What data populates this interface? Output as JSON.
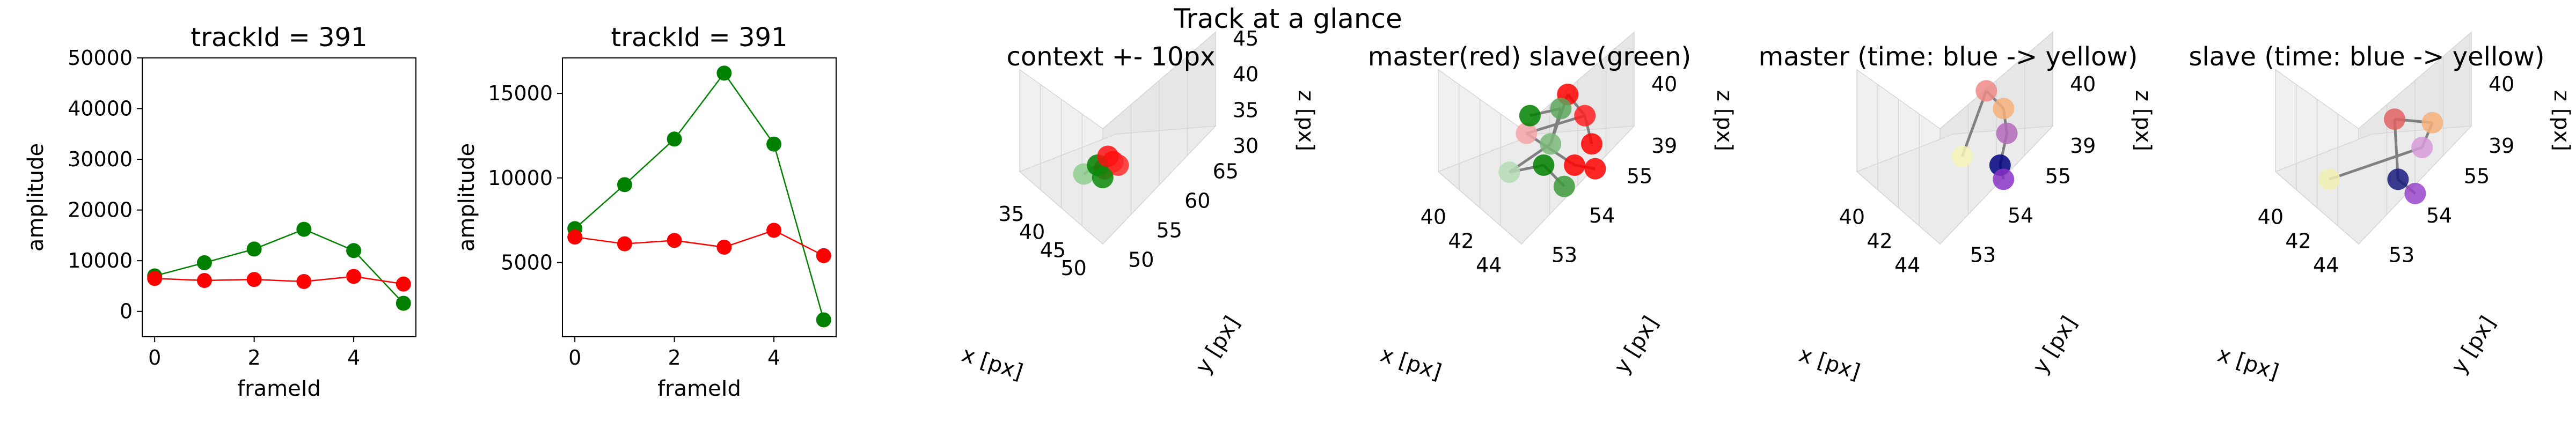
{
  "figure": {
    "suptitle": "Track at a glance"
  },
  "chart_data": [
    {
      "type": "line",
      "title": "trackId = 391",
      "xlabel": "frameId",
      "ylabel": "amplitude",
      "xlim": [
        -0.25,
        5.25
      ],
      "ylim": [
        -5000,
        50000
      ],
      "xticks": [
        0,
        2,
        4
      ],
      "yticks": [
        0,
        10000,
        20000,
        30000,
        40000,
        50000
      ],
      "x": [
        0,
        1,
        2,
        3,
        4,
        5
      ],
      "series": [
        {
          "color": "#008000",
          "values": [
            7000,
            9600,
            12300,
            16200,
            12000,
            1600
          ]
        },
        {
          "color": "#ff0000",
          "values": [
            6500,
            6100,
            6300,
            5900,
            6900,
            5400
          ]
        }
      ]
    },
    {
      "type": "line",
      "title": "trackId = 391",
      "xlabel": "frameId",
      "ylabel": "amplitude",
      "xlim": [
        -0.25,
        5.25
      ],
      "ylim": [
        600,
        17100
      ],
      "xticks": [
        0,
        2,
        4
      ],
      "yticks": [
        5000,
        10000,
        15000
      ],
      "x": [
        0,
        1,
        2,
        3,
        4,
        5
      ],
      "series": [
        {
          "color": "#008000",
          "values": [
            7000,
            9600,
            12300,
            16200,
            12000,
            1600
          ]
        },
        {
          "color": "#ff0000",
          "values": [
            6500,
            6100,
            6300,
            5900,
            6900,
            5400
          ]
        }
      ]
    },
    {
      "type": "scatter",
      "title": "context +- 10px",
      "xlabel": "x [px]",
      "ylabel": "y [px]",
      "zlabel": "z [px]",
      "xticks": [
        "35",
        "40",
        "45",
        "50"
      ],
      "yticks": [
        "50",
        "55",
        "60",
        "65"
      ],
      "zticks": [
        "30",
        "35",
        "40",
        "45"
      ]
    },
    {
      "type": "scatter",
      "title": "master(red) slave(green)",
      "xlabel": "x [px]",
      "ylabel": "y [px]",
      "zlabel": "z [px]",
      "xticks": [
        "40",
        "42",
        "44"
      ],
      "yticks": [
        "53",
        "54",
        "55"
      ],
      "zticks": [
        "39",
        "40"
      ]
    },
    {
      "type": "scatter",
      "title": "master (time: blue -> yellow)",
      "xlabel": "x [px]",
      "ylabel": "y [px]",
      "zlabel": "z [px]",
      "xticks": [
        "40",
        "42",
        "44"
      ],
      "yticks": [
        "53",
        "54",
        "55"
      ],
      "zticks": [
        "39",
        "40"
      ]
    },
    {
      "type": "scatter",
      "title": "slave (time: blue -> yellow)",
      "xlabel": "x [px]",
      "ylabel": "y [px]",
      "zlabel": "z [px]",
      "xticks": [
        "40",
        "42",
        "44"
      ],
      "yticks": [
        "53",
        "54",
        "55"
      ],
      "zticks": [
        "39",
        "40"
      ]
    }
  ]
}
